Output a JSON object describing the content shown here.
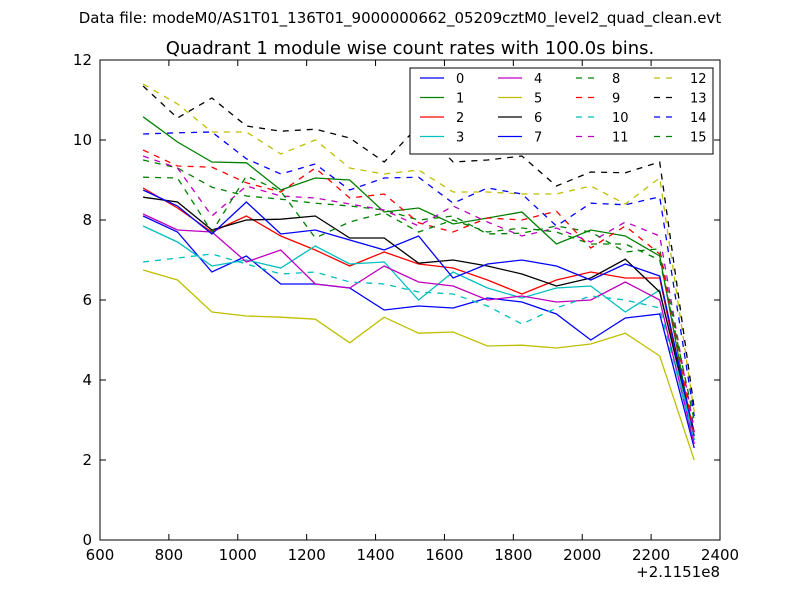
{
  "chart_data": {
    "type": "line",
    "suptitle": "Data file: modeM0/AS1T01_136T01_9000000662_05209cztM0_level2_quad_clean.evt",
    "title": "Quadrant 1 module wise count rates with 100.0s bins.",
    "xlabel": "",
    "ylabel": "",
    "x_offset_label": "+2.1151e8",
    "xlim": [
      600,
      2400
    ],
    "ylim": [
      0,
      12
    ],
    "xticks": [
      600,
      800,
      1000,
      1200,
      1400,
      1600,
      1800,
      2000,
      2200,
      2400
    ],
    "yticks": [
      0,
      2,
      4,
      6,
      8,
      10,
      12
    ],
    "grid": false,
    "legend_position": "top-right",
    "x": [
      725,
      825,
      925,
      1025,
      1125,
      1225,
      1325,
      1425,
      1525,
      1625,
      1725,
      1825,
      1925,
      2025,
      2125,
      2225,
      2325
    ],
    "series": [
      {
        "name": "0",
        "color": "#0000ff",
        "style": "solid",
        "values": [
          8.1,
          7.7,
          6.7,
          7.1,
          6.4,
          6.4,
          6.3,
          5.75,
          5.85,
          5.8,
          6.05,
          5.95,
          5.65,
          5.0,
          5.55,
          5.65,
          2.3
        ]
      },
      {
        "name": "1",
        "color": "#008000",
        "style": "solid",
        "values": [
          10.58,
          9.95,
          9.45,
          9.43,
          8.75,
          9.05,
          9.0,
          8.2,
          8.3,
          7.9,
          8.05,
          8.2,
          7.4,
          7.75,
          7.6,
          7.1,
          2.5
        ]
      },
      {
        "name": "2",
        "color": "#ff0000",
        "style": "solid",
        "values": [
          8.8,
          8.3,
          7.7,
          8.1,
          7.6,
          7.25,
          6.85,
          7.2,
          6.9,
          6.8,
          6.5,
          6.15,
          6.5,
          6.7,
          6.55,
          6.55,
          2.4
        ]
      },
      {
        "name": "3",
        "color": "#00bfbf",
        "style": "solid",
        "values": [
          7.85,
          7.45,
          6.85,
          7.0,
          6.8,
          7.35,
          6.9,
          6.95,
          6.0,
          6.7,
          6.3,
          6.05,
          6.3,
          6.35,
          5.7,
          6.25,
          2.5
        ]
      },
      {
        "name": "4",
        "color": "#bf00bf",
        "style": "solid",
        "values": [
          8.15,
          7.75,
          7.7,
          6.95,
          7.25,
          6.4,
          6.3,
          6.85,
          6.45,
          6.35,
          6.0,
          6.1,
          5.95,
          6.0,
          6.45,
          6.0,
          2.4
        ]
      },
      {
        "name": "5",
        "color": "#bfbf00",
        "style": "solid",
        "values": [
          6.75,
          6.5,
          5.7,
          5.6,
          5.57,
          5.52,
          4.93,
          5.57,
          5.17,
          5.2,
          4.85,
          4.87,
          4.8,
          4.9,
          5.17,
          4.6,
          2.0
        ]
      },
      {
        "name": "6",
        "color": "#000000",
        "style": "solid",
        "values": [
          8.57,
          8.45,
          7.75,
          8.0,
          8.02,
          8.1,
          7.55,
          7.55,
          6.92,
          7.0,
          6.85,
          6.65,
          6.35,
          6.55,
          7.02,
          6.2,
          2.7
        ]
      },
      {
        "name": "7",
        "color": "#0000ff",
        "style": "solid",
        "values": [
          8.75,
          8.35,
          7.65,
          8.45,
          7.65,
          7.75,
          7.5,
          7.25,
          7.6,
          6.55,
          6.9,
          7.0,
          6.85,
          6.5,
          6.9,
          6.6,
          2.6
        ]
      },
      {
        "name": "8",
        "color": "#008000",
        "style": "dashed",
        "values": [
          9.5,
          9.3,
          8.82,
          8.6,
          8.52,
          8.42,
          8.35,
          8.25,
          8.0,
          8.1,
          7.65,
          7.67,
          7.85,
          7.7,
          7.2,
          7.28,
          2.8
        ]
      },
      {
        "name": "9",
        "color": "#ff0000",
        "style": "dashed",
        "values": [
          9.75,
          9.35,
          9.32,
          8.93,
          8.7,
          9.3,
          8.55,
          8.65,
          7.93,
          7.7,
          8.05,
          8.0,
          8.22,
          7.3,
          7.85,
          7.15,
          2.6
        ]
      },
      {
        "name": "10",
        "color": "#00bfbf",
        "style": "dashed",
        "values": [
          6.95,
          7.05,
          7.15,
          6.9,
          6.65,
          6.7,
          6.45,
          6.4,
          6.2,
          6.15,
          5.85,
          5.4,
          5.8,
          6.1,
          6.0,
          5.8,
          2.5
        ]
      },
      {
        "name": "11",
        "color": "#bf00bf",
        "style": "dashed",
        "values": [
          9.6,
          9.3,
          8.1,
          8.85,
          8.6,
          8.55,
          8.4,
          8.25,
          7.85,
          8.35,
          7.95,
          7.6,
          7.8,
          7.45,
          7.95,
          7.6,
          2.7
        ]
      },
      {
        "name": "12",
        "color": "#bfbf00",
        "style": "dashed",
        "values": [
          11.4,
          10.9,
          10.2,
          10.2,
          9.65,
          10.0,
          9.3,
          9.15,
          9.25,
          8.7,
          8.7,
          8.65,
          8.65,
          8.85,
          8.4,
          9.05,
          3.2
        ]
      },
      {
        "name": "13",
        "color": "#000000",
        "style": "dashed",
        "values": [
          11.35,
          10.55,
          11.05,
          10.35,
          10.22,
          10.27,
          10.05,
          9.45,
          10.35,
          9.45,
          9.5,
          9.6,
          8.85,
          9.2,
          9.18,
          9.45,
          3.3
        ]
      },
      {
        "name": "14",
        "color": "#0000ff",
        "style": "dashed",
        "values": [
          10.15,
          10.18,
          10.2,
          9.53,
          9.15,
          9.4,
          8.75,
          9.05,
          9.07,
          8.42,
          8.8,
          8.65,
          7.85,
          8.42,
          8.38,
          8.58,
          3.1
        ]
      },
      {
        "name": "15",
        "color": "#008000",
        "style": "dashed",
        "values": [
          9.07,
          9.05,
          7.7,
          9.1,
          8.72,
          7.55,
          7.95,
          8.18,
          7.7,
          8.0,
          7.7,
          7.8,
          7.7,
          7.4,
          7.4,
          7.0,
          3.0
        ]
      }
    ]
  }
}
